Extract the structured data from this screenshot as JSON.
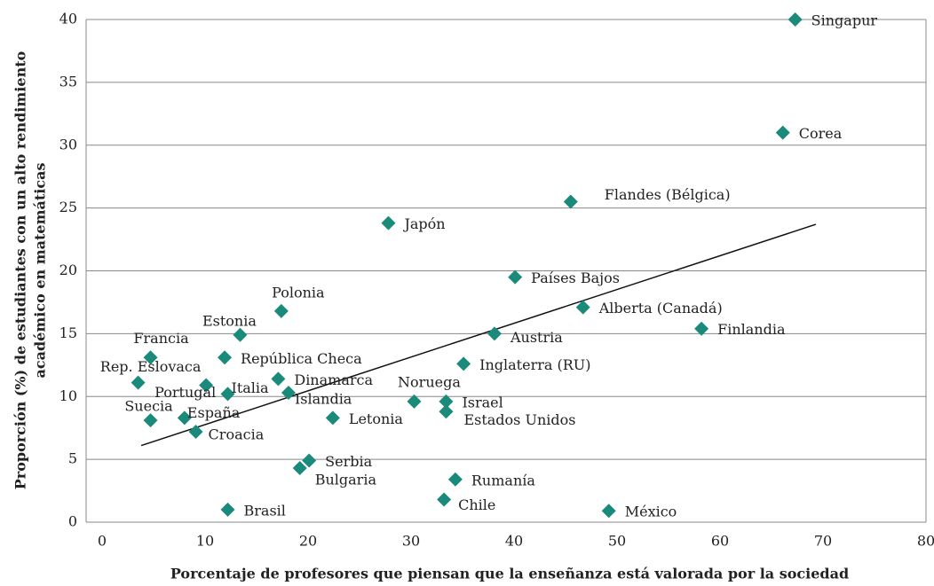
{
  "chart_data": {
    "type": "scatter",
    "x_label": "Porcentaje de profesores que piensan que la enseñanza está valorada por la sociedad",
    "y_label": [
      "Proporción (%) de estudiantes con un alto rendimiento",
      "académico en matemáticas"
    ],
    "labels": [
      "Singapur",
      "Corea",
      "Flandes (Bélgica)",
      "Japón",
      "Países Bajos",
      "Alberta (Canadá)",
      "Finlandia",
      "Polonia",
      "Austria",
      "Estonia",
      "Francia",
      "República Checa",
      "Inglaterra (RU)",
      "Rep. Eslovaca",
      "Dinamarca",
      "Portugal",
      "Italia",
      "Islandia",
      "Noruega",
      "Israel",
      "Estados Unidos",
      "Letonia",
      "Suecia",
      "España",
      "Croacia",
      "Serbia",
      "Bulgaria",
      "Rumanía",
      "Chile",
      "Brasil",
      "México"
    ],
    "x": [
      67.3,
      66.1,
      45.5,
      27.8,
      40.1,
      46.7,
      58.2,
      17.4,
      38.1,
      13.4,
      4.7,
      11.9,
      35.1,
      3.5,
      17.1,
      10.1,
      12.2,
      18.1,
      30.3,
      33.4,
      33.4,
      22.4,
      4.7,
      8.0,
      9.1,
      20.1,
      19.2,
      34.3,
      33.2,
      12.2,
      49.2
    ],
    "y": [
      40,
      31.0,
      25.5,
      23.8,
      19.5,
      17.1,
      15.4,
      16.8,
      15.0,
      14.9,
      13.1,
      13.1,
      12.6,
      11.1,
      11.4,
      10.9,
      10.2,
      10.3,
      9.6,
      9.6,
      8.8,
      8.3,
      8.1,
      8.3,
      7.2,
      4.9,
      4.3,
      3.4,
      1.8,
      1.0,
      0.9
    ],
    "color": "#1a8a7a",
    "trendline": {
      "x": [
        3.8,
        69.3
      ],
      "y": [
        6.1,
        23.7
      ],
      "color": "#111111"
    },
    "xlim": [
      0,
      80
    ],
    "xticks": [
      0,
      10,
      20,
      30,
      40,
      50,
      60,
      70,
      80
    ],
    "ylim": [
      0,
      40
    ],
    "yticks": [
      0,
      5,
      10,
      15,
      20,
      25,
      30,
      35,
      40
    ],
    "grid": true
  }
}
